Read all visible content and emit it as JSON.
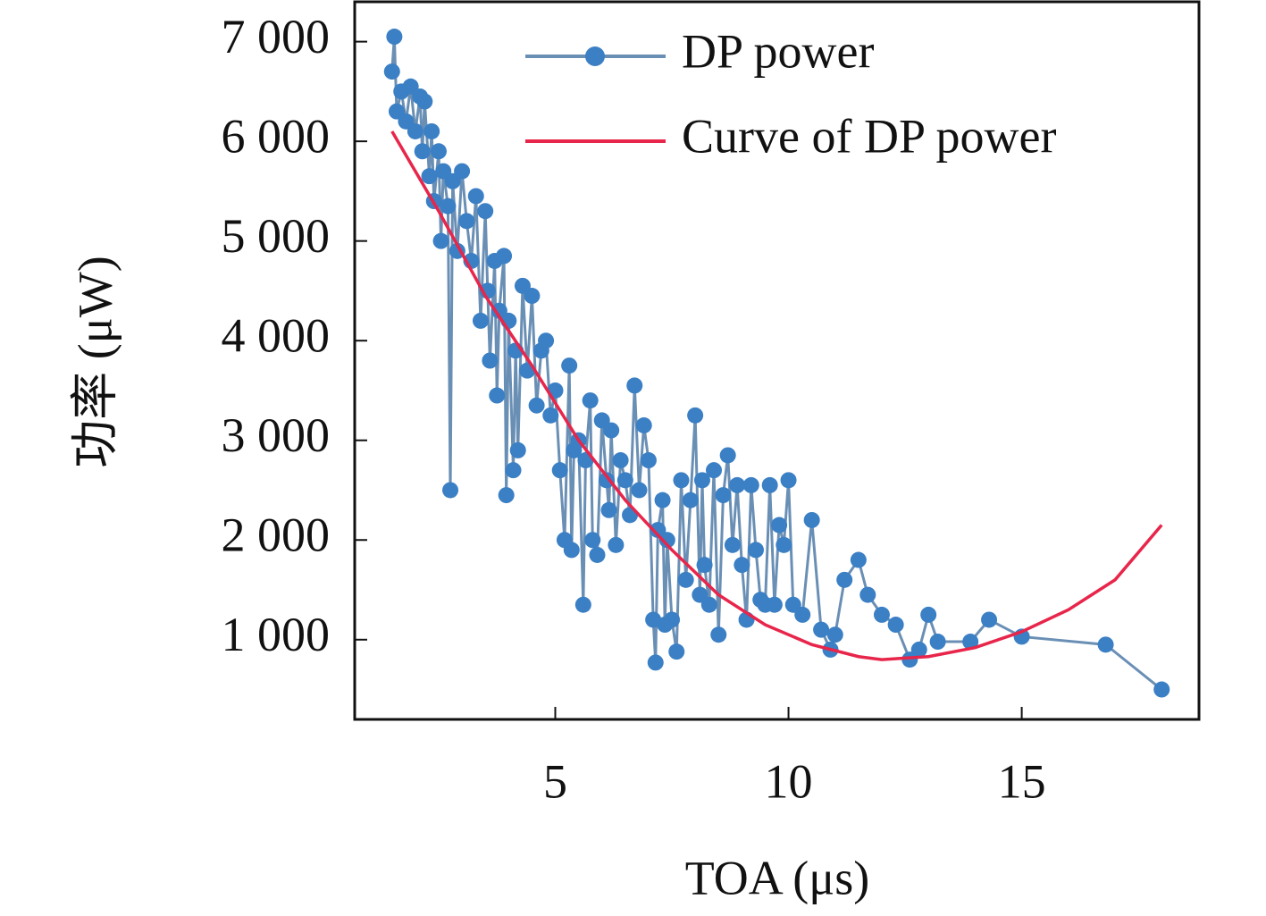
{
  "chart_data": {
    "type": "line",
    "x_label": "TOA (μs)",
    "y_label": "功率 (μW)",
    "xlim": [
      0.7,
      18.8
    ],
    "ylim": [
      200,
      7400
    ],
    "xticks": [
      5,
      10,
      15
    ],
    "yticks": [
      {
        "value": 1000,
        "label": "1 000"
      },
      {
        "value": 2000,
        "label": "2 000"
      },
      {
        "value": 3000,
        "label": "3 000"
      },
      {
        "value": 4000,
        "label": "4 000"
      },
      {
        "value": 5000,
        "label": "5 000"
      },
      {
        "value": 6000,
        "label": "6 000"
      },
      {
        "value": 7000,
        "label": "7 000"
      }
    ],
    "legend": "upper right",
    "series": [
      {
        "name": "DP power",
        "color": "#3b7fc4",
        "line_color": "#6a8fb5",
        "marker": true,
        "x": [
          1.5,
          1.55,
          1.6,
          1.7,
          1.8,
          1.9,
          2.0,
          2.1,
          2.15,
          2.2,
          2.3,
          2.35,
          2.4,
          2.5,
          2.55,
          2.6,
          2.7,
          2.75,
          2.8,
          2.9,
          3.0,
          3.1,
          3.2,
          3.3,
          3.4,
          3.5,
          3.55,
          3.6,
          3.7,
          3.75,
          3.8,
          3.9,
          3.95,
          4.0,
          4.1,
          4.15,
          4.2,
          4.3,
          4.4,
          4.5,
          4.6,
          4.7,
          4.8,
          4.9,
          5.0,
          5.1,
          5.2,
          5.3,
          5.35,
          5.4,
          5.5,
          5.6,
          5.65,
          5.75,
          5.8,
          5.9,
          6.0,
          6.1,
          6.15,
          6.2,
          6.3,
          6.4,
          6.5,
          6.6,
          6.7,
          6.8,
          6.9,
          7.0,
          7.1,
          7.15,
          7.2,
          7.3,
          7.35,
          7.4,
          7.5,
          7.6,
          7.7,
          7.8,
          7.9,
          8.0,
          8.1,
          8.15,
          8.2,
          8.3,
          8.4,
          8.5,
          8.6,
          8.7,
          8.8,
          8.9,
          9.0,
          9.1,
          9.2,
          9.3,
          9.4,
          9.5,
          9.6,
          9.7,
          9.8,
          9.9,
          10.0,
          10.1,
          10.3,
          10.5,
          10.7,
          10.9,
          11.0,
          11.2,
          11.5,
          11.7,
          12.0,
          12.3,
          12.6,
          12.8,
          13.0,
          13.2,
          13.9,
          14.3,
          15.0,
          16.8,
          18.0
        ],
        "values": [
          6700,
          7050,
          6300,
          6500,
          6200,
          6550,
          6100,
          6450,
          5900,
          6400,
          5650,
          6100,
          5400,
          5900,
          5000,
          5700,
          5350,
          2500,
          5600,
          4900,
          5700,
          5200,
          4800,
          5450,
          4200,
          5300,
          4500,
          3800,
          4800,
          3450,
          4300,
          4850,
          2450,
          4200,
          2700,
          3900,
          2900,
          4550,
          3700,
          4450,
          3350,
          3900,
          4000,
          3250,
          3500,
          2700,
          2000,
          3750,
          1900,
          2900,
          3000,
          1350,
          2800,
          3400,
          2000,
          1850,
          3200,
          2600,
          2300,
          3100,
          1950,
          2800,
          2600,
          2250,
          3550,
          2500,
          3150,
          2800,
          1200,
          770,
          2100,
          2400,
          1150,
          2000,
          1200,
          880,
          2600,
          1600,
          2400,
          3250,
          1450,
          2600,
          1750,
          1350,
          2700,
          1050,
          2450,
          2850,
          1950,
          2550,
          1750,
          1200,
          2550,
          1900,
          1400,
          1350,
          2550,
          1350,
          2150,
          1950,
          2600,
          1350,
          1250,
          2200,
          1100,
          900,
          1050,
          1600,
          1800,
          1450,
          1250,
          1150,
          800,
          900,
          1250,
          980,
          980,
          1200,
          1030,
          950,
          500
        ]
      },
      {
        "name": "Curve of DP power",
        "color": "#e8254a",
        "marker": false,
        "x": [
          1.5,
          2.5,
          3.5,
          4.5,
          5.5,
          6.5,
          7.5,
          8.5,
          9.5,
          10.5,
          11.5,
          12.0,
          13.0,
          14.0,
          15.0,
          16.0,
          17.0,
          18.0
        ],
        "values": [
          6100,
          5300,
          4450,
          3750,
          3000,
          2400,
          1900,
          1450,
          1150,
          950,
          830,
          800,
          830,
          920,
          1080,
          1300,
          1600,
          2150
        ]
      }
    ]
  }
}
